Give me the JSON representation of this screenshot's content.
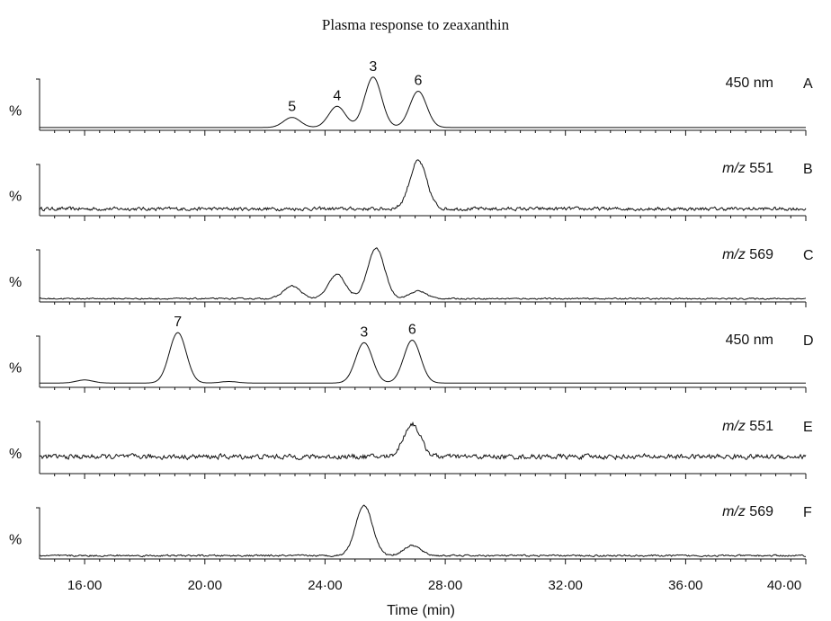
{
  "chart_data": {
    "type": "line",
    "title": "Plasma response to zeaxanthin",
    "xlabel": "Time (min)",
    "xlim": [
      14.5,
      40.0
    ],
    "xticks": [
      {
        "value": 16,
        "label": "16·00"
      },
      {
        "value": 20,
        "label": "20·00"
      },
      {
        "value": 24,
        "label": "24·00"
      },
      {
        "value": 28,
        "label": "28·00"
      },
      {
        "value": 32,
        "label": "32·00"
      },
      {
        "value": 36,
        "label": "36·00"
      },
      {
        "value": 40,
        "label": "40·00"
      }
    ],
    "ylabel": "%",
    "panels": [
      {
        "id": "A",
        "detector": "450 nm",
        "detector_italic": "",
        "noise": 0.0,
        "baseline": 0.02,
        "peaks": [
          {
            "rt": 22.9,
            "height": 0.2,
            "label": "5"
          },
          {
            "rt": 24.4,
            "height": 0.42,
            "label": "4"
          },
          {
            "rt": 25.6,
            "height": 1.0,
            "label": "3"
          },
          {
            "rt": 27.1,
            "height": 0.72,
            "label": "6"
          }
        ]
      },
      {
        "id": "B",
        "detector": " 551",
        "detector_italic": "m/z",
        "noise": 0.05,
        "baseline": 0.1,
        "peaks": [
          {
            "rt": 27.1,
            "height": 0.95,
            "label": ""
          }
        ]
      },
      {
        "id": "C",
        "detector": " 569",
        "detector_italic": "m/z",
        "noise": 0.02,
        "baseline": 0.03,
        "peaks": [
          {
            "rt": 22.9,
            "height": 0.25,
            "label": ""
          },
          {
            "rt": 24.4,
            "height": 0.48,
            "label": ""
          },
          {
            "rt": 25.7,
            "height": 1.0,
            "label": ""
          },
          {
            "rt": 27.1,
            "height": 0.15,
            "label": ""
          }
        ]
      },
      {
        "id": "D",
        "detector": "450 nm",
        "detector_italic": "",
        "noise": 0.0,
        "baseline": 0.05,
        "peaks": [
          {
            "rt": 16.0,
            "height": 0.06,
            "label": ""
          },
          {
            "rt": 19.1,
            "height": 1.0,
            "label": "7"
          },
          {
            "rt": 20.8,
            "height": 0.03,
            "label": ""
          },
          {
            "rt": 25.3,
            "height": 0.8,
            "label": "3"
          },
          {
            "rt": 26.9,
            "height": 0.85,
            "label": "6"
          }
        ]
      },
      {
        "id": "E",
        "detector": " 551",
        "detector_italic": "m/z",
        "noise": 0.07,
        "baseline": 0.3,
        "peaks": [
          {
            "rt": 26.9,
            "height": 0.65,
            "label": ""
          }
        ]
      },
      {
        "id": "F",
        "detector": " 569",
        "detector_italic": "m/z",
        "noise": 0.025,
        "baseline": 0.03,
        "peaks": [
          {
            "rt": 25.3,
            "height": 1.0,
            "label": ""
          },
          {
            "rt": 26.9,
            "height": 0.2,
            "label": ""
          }
        ]
      }
    ]
  }
}
